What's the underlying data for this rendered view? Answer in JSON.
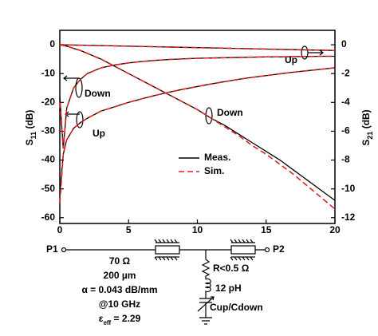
{
  "chart_data": {
    "type": "line",
    "x": [
      0,
      0.25,
      0.5,
      1,
      1.5,
      2,
      3,
      4,
      5,
      6,
      7,
      8,
      9,
      10,
      11,
      12,
      13,
      14,
      15,
      16,
      17,
      18,
      19,
      20
    ],
    "xlim": [
      0,
      20
    ],
    "xticks": [
      0,
      5,
      10,
      15,
      20
    ],
    "ylim": [
      -62,
      5
    ],
    "yticks": [
      0,
      -10,
      -20,
      -30,
      -40,
      -50,
      -60
    ],
    "y2lim": [
      -12.4,
      1
    ],
    "y2ticks": [
      0,
      -2,
      -4,
      -6,
      -8,
      -10,
      -12
    ],
    "y_label": {
      "main": "S",
      "sub": "11",
      "unit": " (dB)"
    },
    "y2_label": {
      "main": "S",
      "sub": "21",
      "unit": " (dB)"
    },
    "legend": [
      {
        "label": "Meas.",
        "color": "#000000",
        "dash": false
      },
      {
        "label": "Sim.",
        "color": "#e02020",
        "dash": true
      }
    ],
    "series": [
      {
        "legend": 0,
        "axis": "y",
        "values": [
          -52,
          -38,
          -33,
          -29,
          -27,
          -25.5,
          -23,
          -21.5,
          -20,
          -18.7,
          -17.5,
          -16.4,
          -15.4,
          -14.5,
          -13.6,
          -12.8,
          -12,
          -11.3,
          -10.7,
          -10.1,
          -9.5,
          -9,
          -8.5,
          -8
        ]
      },
      {
        "legend": 1,
        "axis": "y",
        "values": [
          -55,
          -38,
          -33,
          -29,
          -27,
          -25.5,
          -23,
          -21.5,
          -20,
          -18.7,
          -17.5,
          -16.4,
          -15.4,
          -14.5,
          -13.6,
          -12.8,
          -12,
          -11.3,
          -10.7,
          -10.1,
          -9.5,
          -9,
          -8.5,
          -8
        ]
      },
      {
        "legend": 0,
        "axis": "y",
        "values": [
          -18,
          -36,
          -22,
          -15,
          -12,
          -10,
          -8,
          -7,
          -6.3,
          -5.8,
          -5.4,
          -5.1,
          -4.9,
          -4.7,
          -4.6,
          -4.5,
          -4.4,
          -4.3,
          -4.2,
          -4.2,
          -4.1,
          -4.1,
          -4,
          -4
        ]
      },
      {
        "legend": 1,
        "axis": "y",
        "values": [
          -20,
          -36,
          -22,
          -15,
          -12,
          -10,
          -8,
          -7,
          -6.3,
          -5.8,
          -5.4,
          -5.1,
          -4.9,
          -4.7,
          -4.6,
          -4.5,
          -4.4,
          -4.3,
          -4.2,
          -4.2,
          -4.1,
          -4.1,
          -4,
          -4
        ]
      },
      {
        "legend": 0,
        "axis": "y2",
        "values": [
          0,
          0,
          -0.01,
          -0.02,
          -0.03,
          -0.04,
          -0.06,
          -0.08,
          -0.1,
          -0.12,
          -0.14,
          -0.16,
          -0.18,
          -0.2,
          -0.22,
          -0.24,
          -0.26,
          -0.28,
          -0.3,
          -0.32,
          -0.34,
          -0.36,
          -0.38,
          -0.4
        ]
      },
      {
        "legend": 1,
        "axis": "y2",
        "values": [
          0,
          0,
          -0.01,
          -0.02,
          -0.03,
          -0.04,
          -0.06,
          -0.08,
          -0.1,
          -0.12,
          -0.14,
          -0.16,
          -0.18,
          -0.2,
          -0.22,
          -0.24,
          -0.26,
          -0.28,
          -0.3,
          -0.32,
          -0.34,
          -0.36,
          -0.38,
          -0.4
        ]
      },
      {
        "legend": 0,
        "axis": "y2",
        "values": [
          0,
          -0.05,
          -0.1,
          -0.25,
          -0.4,
          -0.6,
          -1,
          -1.5,
          -2,
          -2.5,
          -3,
          -3.5,
          -4,
          -4.5,
          -5.1,
          -5.6,
          -6.2,
          -6.8,
          -7.4,
          -8,
          -8.7,
          -9.4,
          -10.1,
          -10.8
        ]
      },
      {
        "legend": 1,
        "axis": "y2",
        "values": [
          0,
          -0.05,
          -0.1,
          -0.25,
          -0.4,
          -0.6,
          -1,
          -1.5,
          -2,
          -2.5,
          -3,
          -3.5,
          -4,
          -4.5,
          -5.1,
          -5.7,
          -6.3,
          -7,
          -7.6,
          -8.3,
          -9,
          -9.8,
          -10.6,
          -11.4
        ]
      }
    ],
    "annotations": [
      "Down",
      "Up",
      "Down",
      "Up"
    ]
  },
  "circuit": {
    "port1": "P1",
    "port2": "P2",
    "impedance": "70 Ω",
    "length": "200 µm",
    "loss": "α = 0.043 dB/mm",
    "freq": "@10 GHz",
    "eps": {
      "main": "ε",
      "sub": "eff",
      "rest": " = 2.29"
    },
    "resistor": "R<0.5 Ω",
    "inductor": "12 pH",
    "capacitor": "Cup/Cdown"
  }
}
